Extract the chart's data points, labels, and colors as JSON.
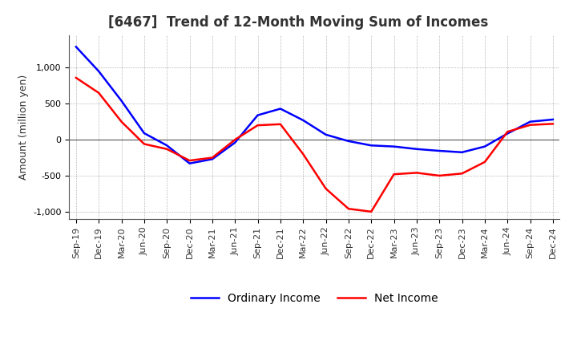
{
  "title": "[6467]  Trend of 12-Month Moving Sum of Incomes",
  "ylabel": "Amount (million yen)",
  "xlabels": [
    "Sep-19",
    "Dec-19",
    "Mar-20",
    "Jun-20",
    "Sep-20",
    "Dec-20",
    "Mar-21",
    "Jun-21",
    "Sep-21",
    "Dec-21",
    "Mar-22",
    "Jun-22",
    "Sep-22",
    "Dec-22",
    "Mar-23",
    "Jun-23",
    "Sep-23",
    "Dec-23",
    "Mar-24",
    "Jun-24",
    "Sep-24",
    "Dec-24"
  ],
  "ordinary_income": [
    1290,
    950,
    540,
    90,
    -80,
    -330,
    -270,
    -40,
    340,
    430,
    270,
    70,
    -20,
    -80,
    -95,
    -130,
    -155,
    -175,
    -95,
    85,
    250,
    280
  ],
  "net_income": [
    860,
    650,
    250,
    -60,
    -130,
    -290,
    -250,
    0,
    200,
    215,
    -200,
    -680,
    -960,
    -1000,
    -480,
    -460,
    -500,
    -470,
    -310,
    110,
    205,
    220
  ],
  "ordinary_color": "#0000ff",
  "net_color": "#ff0000",
  "ylim": [
    -1100,
    1450
  ],
  "yticks": [
    -1000,
    -500,
    0,
    500,
    1000
  ],
  "background_color": "#ffffff",
  "plot_bg_color": "#ffffff",
  "grid_color": "#999999",
  "legend_labels": [
    "Ordinary Income",
    "Net Income"
  ],
  "title_fontsize": 12,
  "label_fontsize": 9,
  "tick_fontsize": 8,
  "line_width": 1.8
}
